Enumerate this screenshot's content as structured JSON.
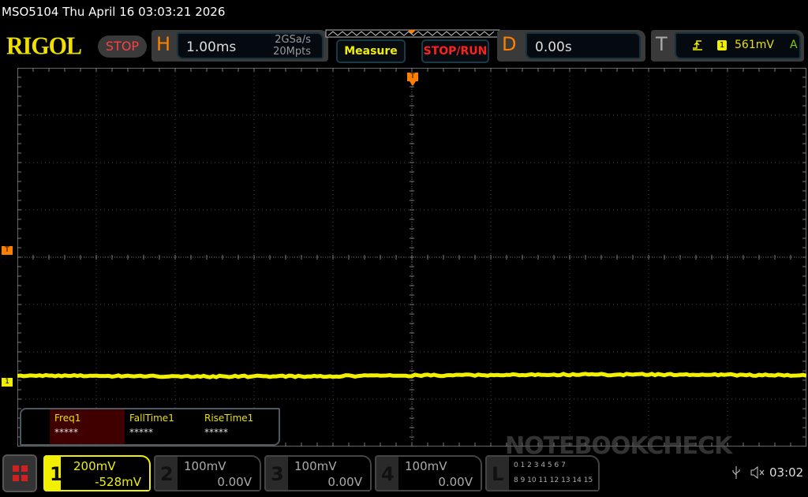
{
  "header": {
    "title": "MSO5104  Thu April 16 03:03:21 2026",
    "logo": "RIGOL",
    "run_state": "STOP"
  },
  "horizontal": {
    "letter": "H",
    "timebase": "1.00ms",
    "sample_rate": "2GSa/s",
    "memory_depth": "20Mpts"
  },
  "buttons": {
    "measure": "Measure",
    "stop_run": "STOP/RUN"
  },
  "delay": {
    "letter": "D",
    "value": "0.00s"
  },
  "trigger": {
    "letter": "T",
    "slope_icon": "rising-edge-icon",
    "source": "1",
    "level": "561mV",
    "mode": "A"
  },
  "markers": {
    "trigger_pos": "T",
    "trigger_level": "T",
    "channel1": "1"
  },
  "measurements": [
    {
      "label": "Freq1",
      "value": "*****"
    },
    {
      "label": "FallTime1",
      "value": "*****"
    },
    {
      "label": "RiseTime1",
      "value": "*****"
    }
  ],
  "channels": [
    {
      "num": "1",
      "scale": "200mV",
      "offset": "-528mV",
      "active": true
    },
    {
      "num": "2",
      "scale": "100mV",
      "offset": "0.00V"
    },
    {
      "num": "3",
      "scale": "100mV",
      "offset": "0.00V"
    },
    {
      "num": "4",
      "scale": "100mV",
      "offset": "0.00V"
    }
  ],
  "logic": {
    "letter": "L",
    "row1": "0 1 2 3  4 5 6 7",
    "row2": "8 9 10 11 12 13 14 15"
  },
  "status": {
    "usb_icon": "usb-icon",
    "sound_icon": "speaker-muted-icon",
    "time": "03:02"
  },
  "watermark": "NOTEBOOKCHECK",
  "colors": {
    "ch1": "#f0f000",
    "orange": "#ff8000",
    "stop": "#ff3030",
    "accent": "#16303c"
  }
}
